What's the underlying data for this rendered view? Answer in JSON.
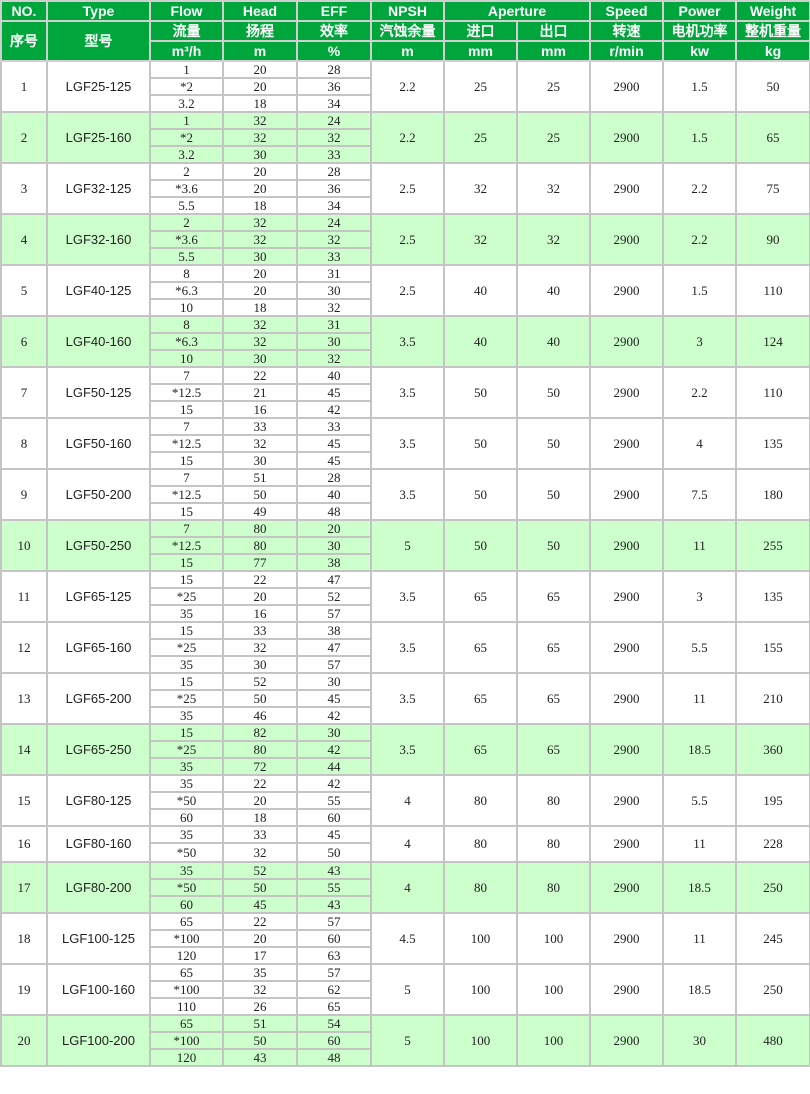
{
  "header": {
    "row1": [
      "NO.",
      "Type",
      "Flow",
      "Head",
      "EFF",
      "NPSH",
      "Aperture",
      "Speed",
      "Power",
      "Weight"
    ],
    "row2": [
      "序号",
      "型号",
      "流量",
      "扬程",
      "效率",
      "汽蚀余量",
      "进口",
      "出口",
      "转速",
      "电机功率",
      "整机重量"
    ],
    "units": [
      "m³/h",
      "m",
      "%",
      "m",
      "mm",
      "mm",
      "r/min",
      "kw",
      "kg"
    ]
  },
  "colors": {
    "header_bg": "#00a63c",
    "highlight_row": "#ccffcc",
    "border": "#c4c4c4"
  },
  "rows": [
    {
      "no": "1",
      "type": "LGF25-125",
      "flow": [
        "1",
        "*2",
        "3.2"
      ],
      "head": [
        "20",
        "20",
        "18"
      ],
      "eff": [
        "28",
        "36",
        "34"
      ],
      "npsh": "2.2",
      "in": "25",
      "out": "25",
      "speed": "2900",
      "power": "1.5",
      "weight": "50",
      "highlight": false
    },
    {
      "no": "2",
      "type": "LGF25-160",
      "flow": [
        "1",
        "*2",
        "3.2"
      ],
      "head": [
        "32",
        "32",
        "30"
      ],
      "eff": [
        "24",
        "32",
        "33"
      ],
      "npsh": "2.2",
      "in": "25",
      "out": "25",
      "speed": "2900",
      "power": "1.5",
      "weight": "65",
      "highlight": true
    },
    {
      "no": "3",
      "type": "LGF32-125",
      "flow": [
        "2",
        "*3.6",
        "5.5"
      ],
      "head": [
        "20",
        "20",
        "18"
      ],
      "eff": [
        "28",
        "36",
        "34"
      ],
      "npsh": "2.5",
      "in": "32",
      "out": "32",
      "speed": "2900",
      "power": "2.2",
      "weight": "75",
      "highlight": false
    },
    {
      "no": "4",
      "type": "LGF32-160",
      "flow": [
        "2",
        "*3.6",
        "5.5"
      ],
      "head": [
        "32",
        "32",
        "30"
      ],
      "eff": [
        "24",
        "32",
        "33"
      ],
      "npsh": "2.5",
      "in": "32",
      "out": "32",
      "speed": "2900",
      "power": "2.2",
      "weight": "90",
      "highlight": true
    },
    {
      "no": "5",
      "type": "LGF40-125",
      "flow": [
        "8",
        "*6.3",
        "10"
      ],
      "head": [
        "20",
        "20",
        "18"
      ],
      "eff": [
        "31",
        "30",
        "32"
      ],
      "npsh": "2.5",
      "in": "40",
      "out": "40",
      "speed": "2900",
      "power": "1.5",
      "weight": "110",
      "highlight": false
    },
    {
      "no": "6",
      "type": "LGF40-160",
      "flow": [
        "8",
        "*6.3",
        "10"
      ],
      "head": [
        "32",
        "32",
        "30"
      ],
      "eff": [
        "31",
        "30",
        "32"
      ],
      "npsh": "3.5",
      "in": "40",
      "out": "40",
      "speed": "2900",
      "power": "3",
      "weight": "124",
      "highlight": true
    },
    {
      "no": "7",
      "type": "LGF50-125",
      "flow": [
        "7",
        "*12.5",
        "15"
      ],
      "head": [
        "22",
        "21",
        "16"
      ],
      "eff": [
        "40",
        "45",
        "42"
      ],
      "npsh": "3.5",
      "in": "50",
      "out": "50",
      "speed": "2900",
      "power": "2.2",
      "weight": "110",
      "highlight": false
    },
    {
      "no": "8",
      "type": "LGF50-160",
      "flow": [
        "7",
        "*12.5",
        "15"
      ],
      "head": [
        "33",
        "32",
        "30"
      ],
      "eff": [
        "33",
        "45",
        "45"
      ],
      "npsh": "3.5",
      "in": "50",
      "out": "50",
      "speed": "2900",
      "power": "4",
      "weight": "135",
      "highlight": false
    },
    {
      "no": "9",
      "type": "LGF50-200",
      "flow": [
        "7",
        "*12.5",
        "15"
      ],
      "head": [
        "51",
        "50",
        "49"
      ],
      "eff": [
        "28",
        "40",
        "48"
      ],
      "npsh": "3.5",
      "in": "50",
      "out": "50",
      "speed": "2900",
      "power": "7.5",
      "weight": "180",
      "highlight": false
    },
    {
      "no": "10",
      "type": "LGF50-250",
      "flow": [
        "7",
        "*12.5",
        "15"
      ],
      "head": [
        "80",
        "80",
        "77"
      ],
      "eff": [
        "20",
        "30",
        "38"
      ],
      "npsh": "5",
      "in": "50",
      "out": "50",
      "speed": "2900",
      "power": "11",
      "weight": "255",
      "highlight": true
    },
    {
      "no": "11",
      "type": "LGF65-125",
      "flow": [
        "15",
        "*25",
        "35"
      ],
      "head": [
        "22",
        "20",
        "16"
      ],
      "eff": [
        "47",
        "52",
        "57"
      ],
      "npsh": "3.5",
      "in": "65",
      "out": "65",
      "speed": "2900",
      "power": "3",
      "weight": "135",
      "highlight": false
    },
    {
      "no": "12",
      "type": "LGF65-160",
      "flow": [
        "15",
        "*25",
        "35"
      ],
      "head": [
        "33",
        "32",
        "30"
      ],
      "eff": [
        "38",
        "47",
        "57"
      ],
      "npsh": "3.5",
      "in": "65",
      "out": "65",
      "speed": "2900",
      "power": "5.5",
      "weight": "155",
      "highlight": false
    },
    {
      "no": "13",
      "type": "LGF65-200",
      "flow": [
        "15",
        "*25",
        "35"
      ],
      "head": [
        "52",
        "50",
        "46"
      ],
      "eff": [
        "30",
        "45",
        "42"
      ],
      "npsh": "3.5",
      "in": "65",
      "out": "65",
      "speed": "2900",
      "power": "11",
      "weight": "210",
      "highlight": false
    },
    {
      "no": "14",
      "type": "LGF65-250",
      "flow": [
        "15",
        "*25",
        "35"
      ],
      "head": [
        "82",
        "80",
        "72"
      ],
      "eff": [
        "30",
        "42",
        "44"
      ],
      "npsh": "3.5",
      "in": "65",
      "out": "65",
      "speed": "2900",
      "power": "18.5",
      "weight": "360",
      "highlight": true
    },
    {
      "no": "15",
      "type": "LGF80-125",
      "flow": [
        "35",
        "*50",
        "60"
      ],
      "head": [
        "22",
        "20",
        "18"
      ],
      "eff": [
        "42",
        "55",
        "60"
      ],
      "npsh": "4",
      "in": "80",
      "out": "80",
      "speed": "2900",
      "power": "5.5",
      "weight": "195",
      "highlight": false
    },
    {
      "no": "16",
      "type": "LGF80-160",
      "flow": [
        "35",
        "*50"
      ],
      "head": [
        "33",
        "32"
      ],
      "eff": [
        "45",
        "50"
      ],
      "npsh": "4",
      "in": "80",
      "out": "80",
      "speed": "2900",
      "power": "11",
      "weight": "228",
      "highlight": false
    },
    {
      "no": "17",
      "type": "LGF80-200",
      "flow": [
        "35",
        "*50",
        "60"
      ],
      "head": [
        "52",
        "50",
        "45"
      ],
      "eff": [
        "43",
        "55",
        "43"
      ],
      "npsh": "4",
      "in": "80",
      "out": "80",
      "speed": "2900",
      "power": "18.5",
      "weight": "250",
      "highlight": true
    },
    {
      "no": "18",
      "type": "LGF100-125",
      "flow": [
        "65",
        "*100",
        "120"
      ],
      "head": [
        "22",
        "20",
        "17"
      ],
      "eff": [
        "57",
        "60",
        "63"
      ],
      "npsh": "4.5",
      "in": "100",
      "out": "100",
      "speed": "2900",
      "power": "11",
      "weight": "245",
      "highlight": false
    },
    {
      "no": "19",
      "type": "LGF100-160",
      "flow": [
        "65",
        "*100",
        "110"
      ],
      "head": [
        "35",
        "32",
        "26"
      ],
      "eff": [
        "57",
        "62",
        "65"
      ],
      "npsh": "5",
      "in": "100",
      "out": "100",
      "speed": "2900",
      "power": "18.5",
      "weight": "250",
      "highlight": false
    },
    {
      "no": "20",
      "type": "LGF100-200",
      "flow": [
        "65",
        "*100",
        "120"
      ],
      "head": [
        "51",
        "50",
        "43"
      ],
      "eff": [
        "54",
        "60",
        "48"
      ],
      "npsh": "5",
      "in": "100",
      "out": "100",
      "speed": "2900",
      "power": "30",
      "weight": "480",
      "highlight": true
    }
  ]
}
